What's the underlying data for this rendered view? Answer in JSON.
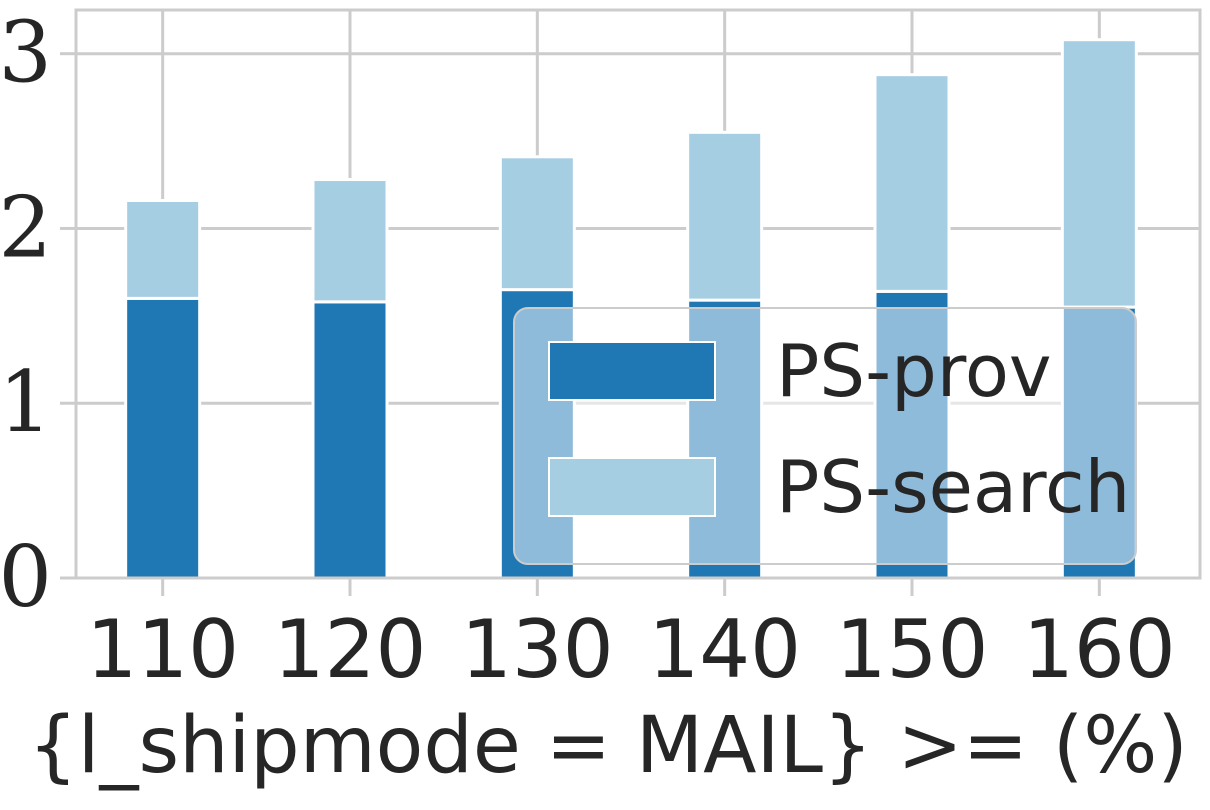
{
  "chart_data": {
    "type": "bar",
    "stacked": true,
    "categories": [
      "110",
      "120",
      "130",
      "140",
      "150",
      "160"
    ],
    "series": [
      {
        "name": "PS-prov",
        "color": "#1f77b4",
        "values": [
          1.6,
          1.58,
          1.65,
          1.59,
          1.64,
          1.55
        ]
      },
      {
        "name": "PS-search",
        "color": "#a6cee3",
        "values": [
          0.56,
          0.7,
          0.76,
          0.96,
          1.24,
          1.53
        ]
      }
    ],
    "title": "",
    "xlabel": "{l_shipmode = MAIL} >= (%)",
    "ylabel": "",
    "ylim": [
      0,
      3.25
    ],
    "yticks": [
      "0",
      "1",
      "2",
      "3"
    ],
    "grid": true,
    "legend_position": "lower-right"
  }
}
